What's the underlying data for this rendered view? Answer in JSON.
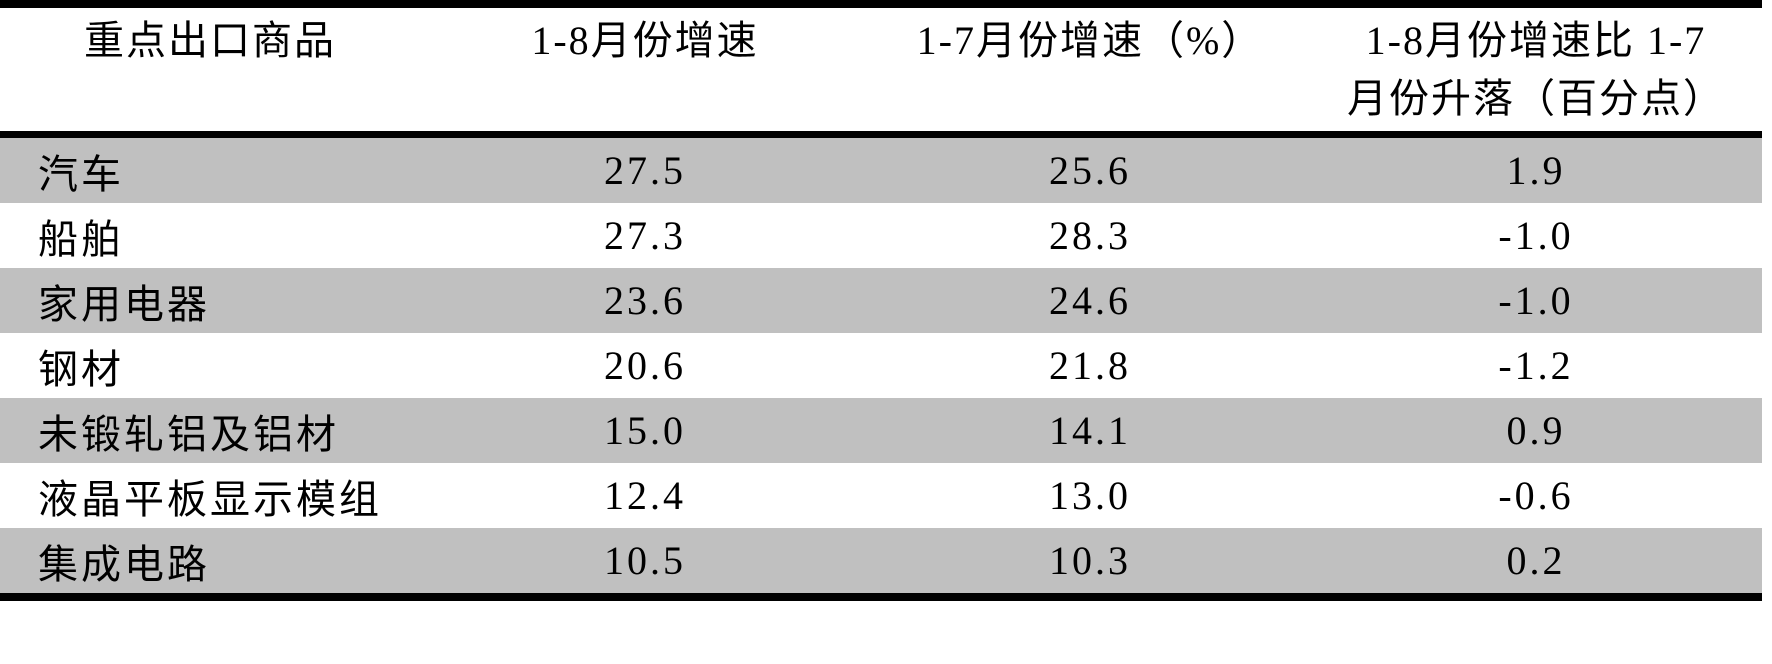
{
  "table": {
    "headers": {
      "col1": "重点出口商品",
      "col2": "1-8月份增速",
      "col3": "1-7月份增速（%）",
      "col4_line1": "1-8月份增速比 1-7",
      "col4_line2": "月份升落（百分点）"
    },
    "rows": [
      {
        "name": "汽车",
        "aug": "27.5",
        "jul": "25.6",
        "diff": "1.9"
      },
      {
        "name": "船舶",
        "aug": "27.3",
        "jul": "28.3",
        "diff": "-1.0"
      },
      {
        "name": "家用电器",
        "aug": "23.6",
        "jul": "24.6",
        "diff": "-1.0"
      },
      {
        "name": "钢材",
        "aug": "20.6",
        "jul": "21.8",
        "diff": "-1.2"
      },
      {
        "name": "未锻轧铝及铝材",
        "aug": "15.0",
        "jul": "14.1",
        "diff": "0.9"
      },
      {
        "name": "液晶平板显示模组",
        "aug": "12.4",
        "jul": "13.0",
        "diff": "-0.6"
      },
      {
        "name": "集成电路",
        "aug": "10.5",
        "jul": "10.3",
        "diff": "0.2"
      }
    ],
    "colors": {
      "row_gray": "#c0c0c0",
      "row_white": "#ffffff",
      "rule_black": "#000000"
    }
  },
  "chart_data": {
    "type": "table",
    "columns": [
      "重点出口商品",
      "1-8月份增速",
      "1-7月份增速（%）",
      "1-8月份增速比1-7月份升落（百分点）"
    ],
    "rows": [
      [
        "汽车",
        27.5,
        25.6,
        1.9
      ],
      [
        "船舶",
        27.3,
        28.3,
        -1.0
      ],
      [
        "家用电器",
        23.6,
        24.6,
        -1.0
      ],
      [
        "钢材",
        20.6,
        21.8,
        -1.2
      ],
      [
        "未锻轧铝及铝材",
        15.0,
        14.1,
        0.9
      ],
      [
        "液晶平板显示模组",
        12.4,
        13.0,
        -0.6
      ],
      [
        "集成电路",
        10.5,
        10.3,
        0.2
      ]
    ]
  }
}
